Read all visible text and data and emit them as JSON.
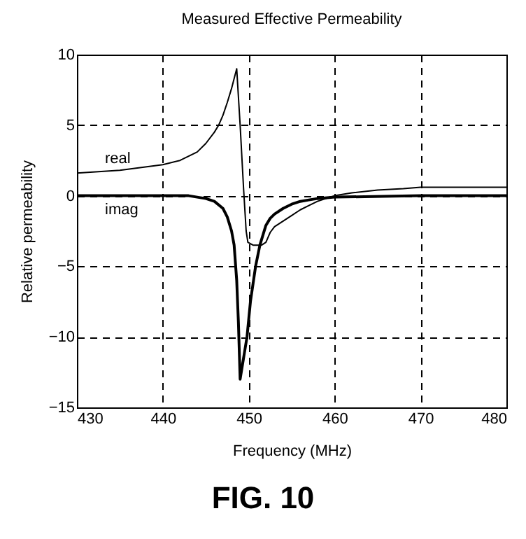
{
  "chart_data": {
    "type": "line",
    "title": "Measured Effective Permeability",
    "xlabel": "Frequency (MHz)",
    "ylabel": "Relative permeability",
    "annotations": [
      "FIG. 10"
    ],
    "series": [
      {
        "name": "real",
        "color": "#000000",
        "x": [
          430,
          435,
          440,
          442,
          444,
          445,
          446,
          446.5,
          447,
          447.5,
          448,
          448.3,
          448.6,
          449,
          449.4,
          449.7,
          449.9,
          450.5,
          451,
          451.5,
          452,
          452.5,
          453,
          454,
          455,
          456,
          457,
          458,
          459,
          460,
          462,
          465,
          468,
          470,
          475,
          480
        ],
        "values": [
          1.6,
          1.8,
          2.2,
          2.5,
          3.1,
          3.7,
          4.5,
          5,
          5.7,
          6.6,
          7.6,
          8.3,
          9.0,
          5,
          0.5,
          -2.5,
          -3.3,
          -3.5,
          -3.5,
          -3.5,
          -3.3,
          -2.6,
          -2.2,
          -1.8,
          -1.4,
          -1.0,
          -0.7,
          -0.4,
          -0.2,
          0,
          0.2,
          0.4,
          0.5,
          0.6,
          0.6,
          0.6
        ]
      },
      {
        "name": "imag",
        "color": "#000000",
        "x": [
          430,
          440,
          443,
          445,
          446,
          447,
          447.5,
          448,
          448.3,
          448.6,
          448.8,
          449,
          449.4,
          449.8,
          450.2,
          450.8,
          451.3,
          452,
          452.5,
          453,
          454,
          455,
          456,
          457,
          458,
          460,
          470,
          480
        ],
        "values": [
          0,
          0,
          0,
          -0.2,
          -0.4,
          -0.9,
          -1.5,
          -2.5,
          -3.5,
          -6,
          -9,
          -13,
          -11.5,
          -10,
          -7.5,
          -5,
          -3.5,
          -2.1,
          -1.6,
          -1.3,
          -0.9,
          -0.6,
          -0.4,
          -0.3,
          -0.2,
          -0.1,
          0,
          0
        ]
      }
    ],
    "xlim": [
      430,
      480
    ],
    "xticks": [
      430,
      440,
      450,
      460,
      470,
      480
    ],
    "ylim": [
      -15,
      10
    ],
    "yticks": [
      -15,
      -10,
      -5,
      0,
      5,
      10
    ],
    "grid": true,
    "line_style": "solid",
    "marker": "none"
  }
}
